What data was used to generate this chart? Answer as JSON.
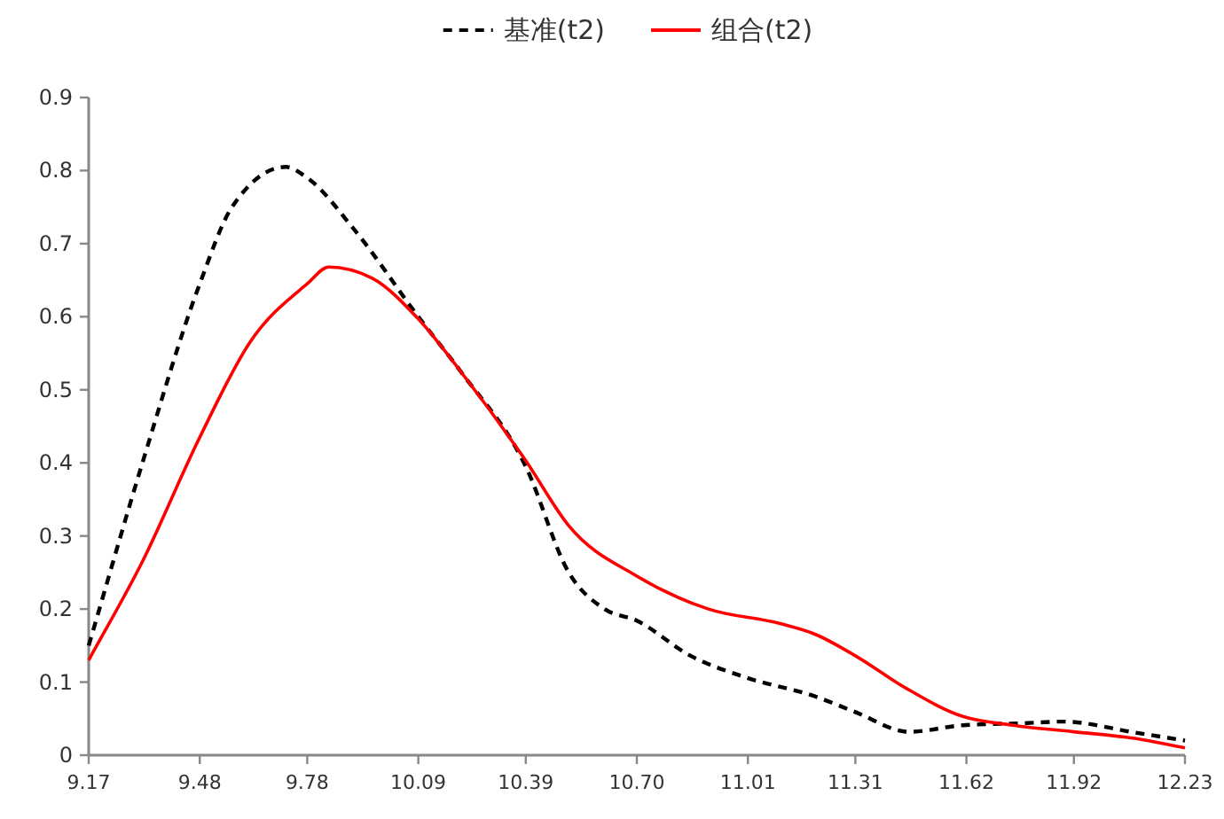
{
  "chart_data": {
    "type": "line",
    "xlim": [
      9.17,
      12.23
    ],
    "xticks": [
      9.17,
      9.48,
      9.78,
      10.09,
      10.39,
      {
        "value": 10.7,
        "label": "10.70"
      },
      11.01,
      11.31,
      11.62,
      11.92,
      12.23
    ],
    "ylim": [
      0,
      0.9
    ],
    "yticks": [
      0,
      0.1,
      0.2,
      0.3,
      0.4,
      0.5,
      0.6,
      0.7,
      0.8,
      0.9
    ],
    "grid": false,
    "legend": "top",
    "marker": "none",
    "series": [
      {
        "name": "基准(t2)",
        "color": "#000000",
        "line_style": "dashed",
        "x": [
          9.17,
          9.32,
          9.48,
          9.57,
          9.72,
          9.78,
          9.91,
          10.09,
          10.21,
          10.39,
          10.51,
          10.61,
          10.7,
          10.85,
          11.0,
          11.2,
          11.31,
          11.46,
          11.61,
          11.79,
          11.89,
          12.09,
          12.23
        ],
        "values": [
          0.15,
          0.4,
          0.645,
          0.75,
          0.805,
          0.79,
          0.72,
          0.6,
          0.524,
          0.395,
          0.25,
          0.2,
          0.184,
          0.136,
          0.107,
          0.08,
          0.059,
          0.032,
          0.041,
          0.044,
          0.046,
          0.031,
          0.02
        ]
      },
      {
        "name": "组合(t2)",
        "color": "#ff0000",
        "line_style": "solid",
        "x": [
          9.17,
          9.32,
          9.48,
          9.62,
          9.78,
          9.84,
          9.96,
          10.09,
          10.21,
          10.39,
          10.51,
          10.7,
          10.9,
          11.1,
          11.2,
          11.31,
          11.45,
          11.61,
          11.75,
          11.92,
          12.09,
          12.23
        ],
        "values": [
          0.13,
          0.265,
          0.435,
          0.565,
          0.645,
          0.668,
          0.653,
          0.597,
          0.524,
          0.403,
          0.314,
          0.245,
          0.2,
          0.18,
          0.165,
          0.136,
          0.092,
          0.053,
          0.041,
          0.032,
          0.023,
          0.01
        ]
      }
    ]
  }
}
